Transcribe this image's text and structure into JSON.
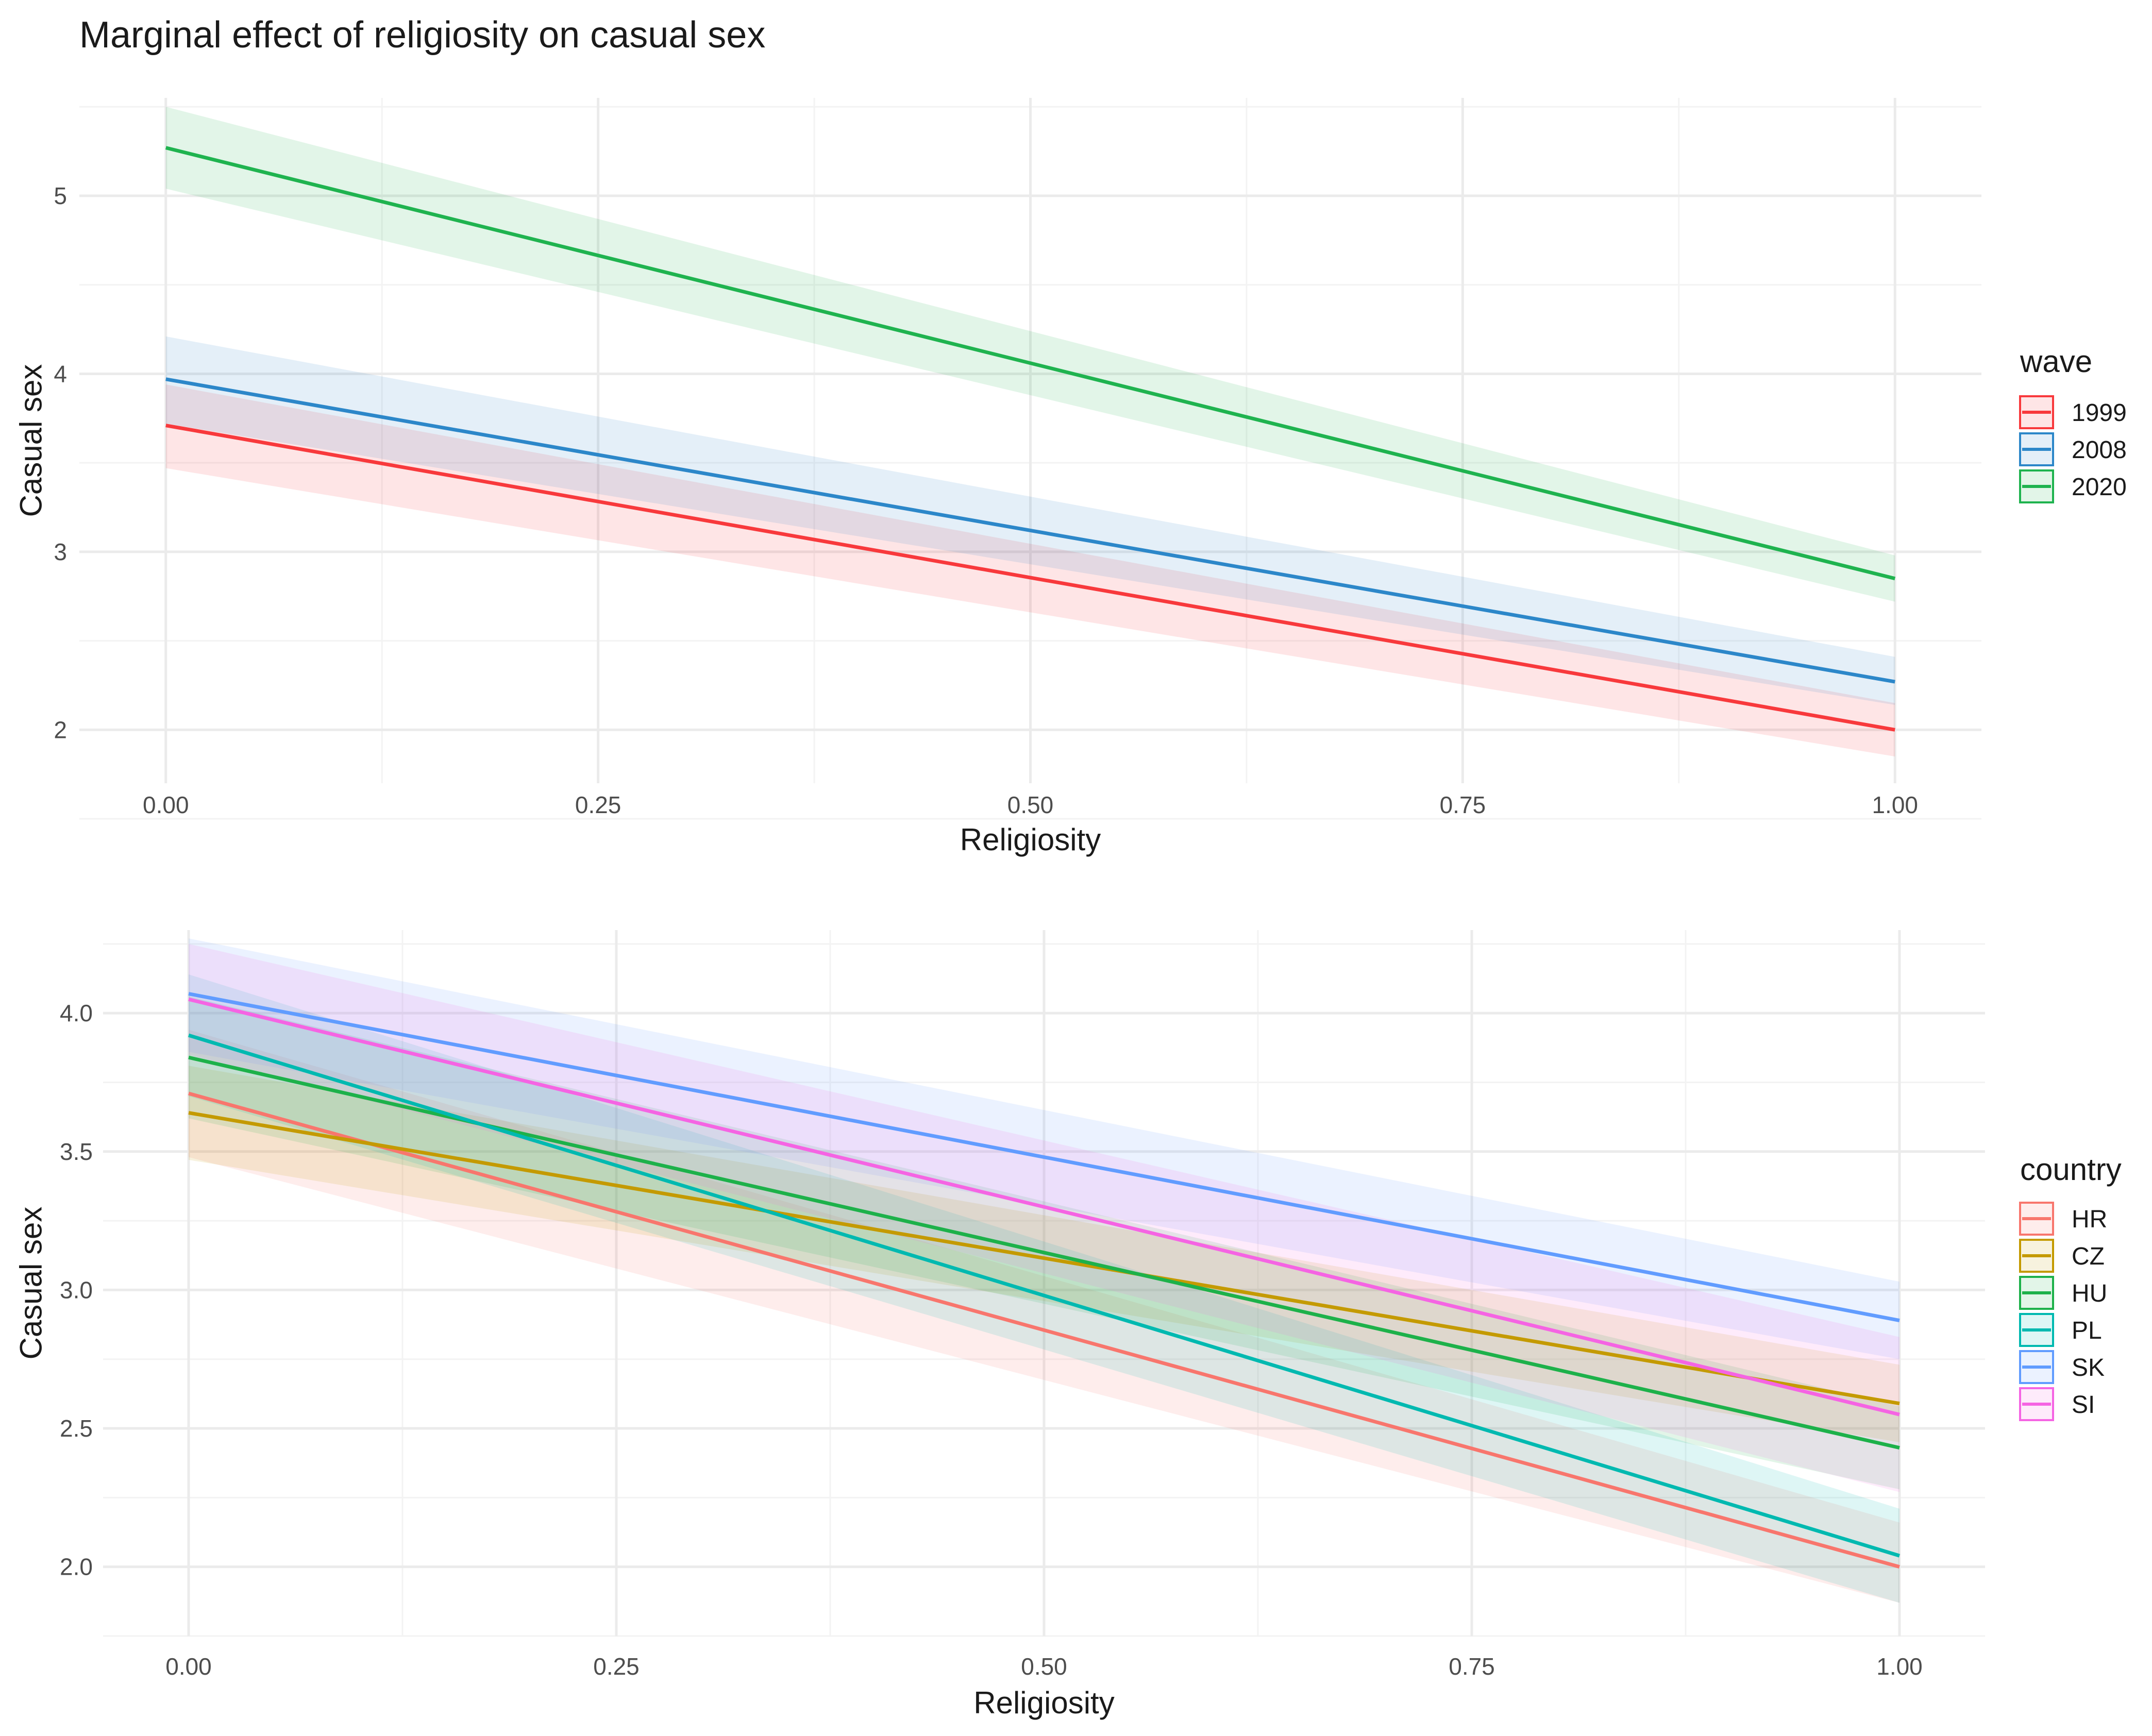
{
  "figure_title": "Marginal effect of religiosity on casual sex",
  "chart_data": [
    {
      "type": "line",
      "title": "Marginal effect of religiosity on casual sex",
      "xlabel": "Religiosity",
      "ylabel": "Casual sex",
      "xlim": [
        -0.05,
        1.05
      ],
      "ylim": [
        1.7,
        5.55
      ],
      "xticks": [
        0,
        0.25,
        0.5,
        0.75,
        1
      ],
      "xtick_labels": [
        "0.00",
        "0.25",
        "0.50",
        "0.75",
        "1.00"
      ],
      "yticks": [
        2,
        3,
        4,
        5
      ],
      "ytick_labels": [
        "2",
        "3",
        "4",
        "5"
      ],
      "grid": true,
      "legend_title": "wave",
      "legend_position": "right",
      "series": [
        {
          "name": "1999",
          "color": "#F8393C",
          "x": [
            0,
            1
          ],
          "y": [
            3.71,
            2.0
          ],
          "lower": [
            3.47,
            1.85
          ],
          "upper": [
            3.94,
            2.15
          ]
        },
        {
          "name": "2008",
          "color": "#2C87C9",
          "x": [
            0,
            1
          ],
          "y": [
            3.97,
            2.27
          ],
          "lower": [
            3.72,
            2.14
          ],
          "upper": [
            4.21,
            2.41
          ]
        },
        {
          "name": "2020",
          "color": "#1FB34F",
          "x": [
            0,
            1
          ],
          "y": [
            5.27,
            2.85
          ],
          "lower": [
            5.04,
            2.72
          ],
          "upper": [
            5.5,
            2.98
          ]
        }
      ]
    },
    {
      "type": "line",
      "title": "",
      "xlabel": "Religiosity",
      "ylabel": "Casual sex",
      "xlim": [
        -0.05,
        1.05
      ],
      "ylim": [
        1.75,
        4.3
      ],
      "xticks": [
        0,
        0.25,
        0.5,
        0.75,
        1
      ],
      "xtick_labels": [
        "0.00",
        "0.25",
        "0.50",
        "0.75",
        "1.00"
      ],
      "yticks": [
        2.0,
        2.5,
        3.0,
        3.5,
        4.0
      ],
      "ytick_labels": [
        "2.0",
        "2.5",
        "3.0",
        "3.5",
        "4.0"
      ],
      "grid": true,
      "legend_title": "country",
      "legend_position": "right",
      "series": [
        {
          "name": "HR",
          "color": "#F8766D",
          "x": [
            0,
            1
          ],
          "y": [
            3.71,
            2.0
          ],
          "lower": [
            3.48,
            1.87
          ],
          "upper": [
            3.94,
            2.16
          ]
        },
        {
          "name": "CZ",
          "color": "#C49A00",
          "x": [
            0,
            1
          ],
          "y": [
            3.64,
            2.59
          ],
          "lower": [
            3.47,
            2.45
          ],
          "upper": [
            3.81,
            2.73
          ]
        },
        {
          "name": "HU",
          "color": "#1DB14A",
          "x": [
            0,
            1
          ],
          "y": [
            3.84,
            2.43
          ],
          "lower": [
            3.62,
            2.28
          ],
          "upper": [
            4.06,
            2.58
          ]
        },
        {
          "name": "PL",
          "color": "#00B9B0",
          "x": [
            0,
            1
          ],
          "y": [
            3.92,
            2.04
          ],
          "lower": [
            3.7,
            1.87
          ],
          "upper": [
            4.14,
            2.21
          ]
        },
        {
          "name": "SK",
          "color": "#619CFF",
          "x": [
            0,
            1
          ],
          "y": [
            4.07,
            2.89
          ],
          "lower": [
            3.86,
            2.75
          ],
          "upper": [
            4.27,
            3.03
          ]
        },
        {
          "name": "SI",
          "color": "#F564E3",
          "x": [
            0,
            1
          ],
          "y": [
            4.05,
            2.55
          ],
          "lower": [
            3.85,
            2.27
          ],
          "upper": [
            4.25,
            2.83
          ]
        }
      ]
    }
  ]
}
